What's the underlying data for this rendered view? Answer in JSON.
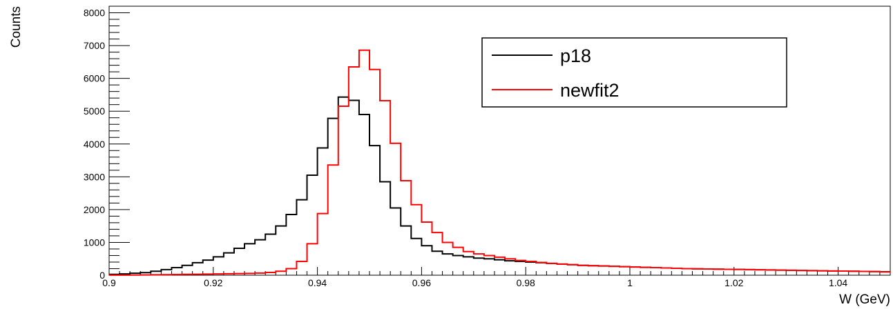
{
  "chart_data": {
    "type": "histogram",
    "xlabel": "W (GeV)",
    "ylabel": "Counts",
    "xlim": [
      0.9,
      1.05
    ],
    "ylim": [
      0,
      8200
    ],
    "bin_width": 0.002,
    "x_ticks": [
      0.9,
      0.92,
      0.94,
      0.96,
      0.98,
      1,
      1.02,
      1.04
    ],
    "x_tick_labels": [
      "0.9",
      "0.92",
      "0.94",
      "0.96",
      "0.98",
      "1",
      "1.02",
      "1.04"
    ],
    "y_ticks": [
      0,
      1000,
      2000,
      3000,
      4000,
      5000,
      6000,
      7000,
      8000
    ],
    "y_tick_labels": [
      "0",
      "1000",
      "2000",
      "3000",
      "4000",
      "5000",
      "6000",
      "7000",
      "8000"
    ],
    "legend_position": "top-right",
    "series": [
      {
        "name": "p18",
        "color": "#000000",
        "values": [
          25,
          40,
          60,
          80,
          120,
          170,
          230,
          300,
          380,
          460,
          560,
          680,
          820,
          960,
          1080,
          1250,
          1500,
          1850,
          2300,
          3050,
          3880,
          4780,
          5430,
          5330,
          4900,
          3950,
          2850,
          2050,
          1500,
          1120,
          900,
          730,
          650,
          600,
          560,
          520,
          500,
          470,
          440,
          420,
          400,
          380,
          360,
          340,
          320,
          300,
          290,
          280,
          270,
          260,
          250,
          240,
          230,
          220,
          210,
          200,
          195,
          190,
          185,
          180,
          175,
          170,
          165,
          160,
          155,
          150,
          145,
          140,
          135,
          130,
          125,
          120,
          115,
          110,
          105
        ]
      },
      {
        "name": "newfit2",
        "color": "#ff0000",
        "values": [
          2,
          3,
          5,
          8,
          12,
          15,
          20,
          25,
          30,
          35,
          40,
          45,
          50,
          55,
          65,
          85,
          120,
          200,
          420,
          960,
          1880,
          3360,
          5150,
          6350,
          6860,
          6270,
          5320,
          4020,
          2880,
          2150,
          1620,
          1300,
          1000,
          850,
          720,
          650,
          600,
          550,
          500,
          450,
          420,
          390,
          360,
          340,
          320,
          300,
          290,
          280,
          270,
          260,
          250,
          240,
          230,
          220,
          210,
          200,
          195,
          190,
          185,
          180,
          175,
          170,
          165,
          160,
          155,
          150,
          145,
          140,
          135,
          130,
          125,
          120,
          115,
          110,
          100
        ]
      }
    ]
  }
}
